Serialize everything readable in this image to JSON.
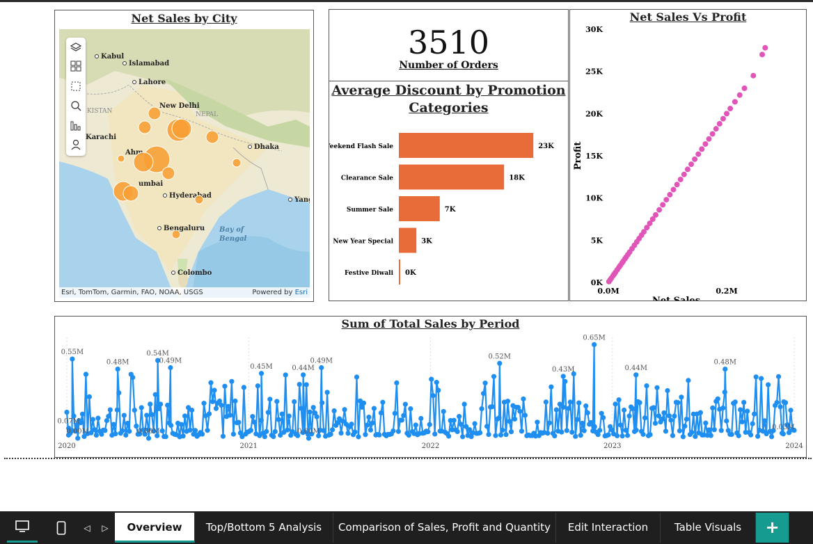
{
  "map": {
    "title": "Net Sales by City",
    "attribution": "Esri, TomTom, Garmin, FAO, NOAA, USGS",
    "powered_by": "Powered by",
    "powered_brand": "Esri",
    "tools": [
      "layers-icon",
      "legend-icon",
      "select-icon",
      "search-icon",
      "bar-chart-icon",
      "person-icon"
    ],
    "place_labels": [
      "Kabul",
      "Islamabad",
      "Lahore",
      "KISTAN",
      "New Delhi",
      "NEPAL",
      "Karachi",
      "Ahm",
      "Dhaka",
      "umbai",
      "Hyderabad",
      "Yang",
      "Bengaluru",
      "Bay of",
      "Bengal",
      "Colombo"
    ],
    "bubble_color": "#f7a035"
  },
  "kpi": {
    "value": "3510",
    "label": "Number of Orders"
  },
  "discount": {
    "title_line1": "Average Discount by Promotion",
    "title_line2": "Categories",
    "bar_color": "#e86c3a",
    "chart_data": {
      "type": "bar",
      "orientation": "horizontal",
      "categories": [
        "Weekend Flash Sale",
        "Clearance Sale",
        "Summer Sale",
        "New Year Special",
        "Festive Diwali"
      ],
      "values": [
        23000,
        18000,
        7000,
        3000,
        200
      ],
      "data_labels": [
        "23K",
        "18K",
        "7K",
        "3K",
        "0K"
      ],
      "xlim": [
        0,
        25000
      ]
    }
  },
  "scatter": {
    "title": "Net Sales Vs Profit",
    "point_color": "#e055b8",
    "chart_data": {
      "type": "scatter",
      "xlabel": "Net Sales",
      "ylabel": "Profit",
      "x_ticks": [
        "0.0M",
        "0.2M"
      ],
      "x_tick_values": [
        0,
        200000
      ],
      "y_ticks": [
        "0K",
        "5K",
        "10K",
        "15K",
        "20K",
        "25K",
        "30K"
      ],
      "y_tick_values": [
        0,
        5000,
        10000,
        15000,
        20000,
        25000,
        30000
      ],
      "xlim": [
        0,
        300000
      ],
      "ylim": [
        0,
        30000
      ],
      "x": [
        1000,
        3000,
        5000,
        8000,
        10000,
        12000,
        15000,
        18000,
        20000,
        23000,
        25000,
        28000,
        30000,
        33000,
        36000,
        40000,
        44000,
        48000,
        52000,
        56000,
        60000,
        65000,
        70000,
        75000,
        80000,
        86000,
        92000,
        98000,
        104000,
        110000,
        116000,
        122000,
        128000,
        134000,
        140000,
        146000,
        152000,
        158000,
        164000,
        170000,
        176000,
        182000,
        188000,
        194000,
        200000,
        206000,
        214000,
        222000,
        230000,
        245000,
        260000,
        265000
      ],
      "y": [
        100,
        300,
        500,
        800,
        1000,
        1200,
        1500,
        1800,
        2000,
        2300,
        2500,
        2800,
        3000,
        3300,
        3600,
        4000,
        4400,
        4800,
        5200,
        5600,
        6000,
        6500,
        7000,
        7500,
        8000,
        8600,
        9200,
        9800,
        10400,
        11000,
        11600,
        12200,
        12800,
        13400,
        14000,
        14600,
        15200,
        15800,
        16400,
        17000,
        17600,
        18200,
        18800,
        19400,
        20000,
        20600,
        21400,
        22200,
        23000,
        24500,
        27000,
        27800
      ]
    }
  },
  "period": {
    "title": "Sum of Total Sales by Period",
    "line_color": "#1f8ef1",
    "chart_data": {
      "type": "line",
      "x_ticks": [
        "2020",
        "2021",
        "2022",
        "2023",
        "2024"
      ],
      "annotations": [
        "0.55M",
        "0.48M",
        "0.54M",
        "0.49M",
        "0.45M",
        "0.49M",
        "0.52M",
        "0.43M",
        "0.65M",
        "0.44M",
        "0.48M",
        "0.07M",
        "0.00M",
        "0.00M",
        "0.44M",
        "0.00M",
        "0.03M"
      ],
      "annotation_values": [
        0.55,
        0.48,
        0.54,
        0.49,
        0.45,
        0.49,
        0.52,
        0.43,
        0.65,
        0.44,
        0.48,
        0.07,
        0.0,
        0.0,
        0.44,
        0.0,
        0.03
      ],
      "annotation_dates": [
        2020.03,
        2020.28,
        2020.5,
        2020.57,
        2021.07,
        2021.4,
        2022.38,
        2022.73,
        2022.9,
        2023.13,
        2023.62,
        2020.01,
        2020.06,
        2020.45,
        2021.3,
        2021.33,
        2023.94
      ],
      "ylim": [
        0,
        0.7
      ],
      "xlim": [
        2020,
        2024
      ]
    }
  },
  "tabs": {
    "items": [
      "Overview",
      "Top/Bottom 5 Analysis",
      "Comparison of Sales, Profit and Quantity",
      "Edit Interaction",
      "Table Visuals"
    ],
    "active": "Overview",
    "add_label": "+"
  }
}
